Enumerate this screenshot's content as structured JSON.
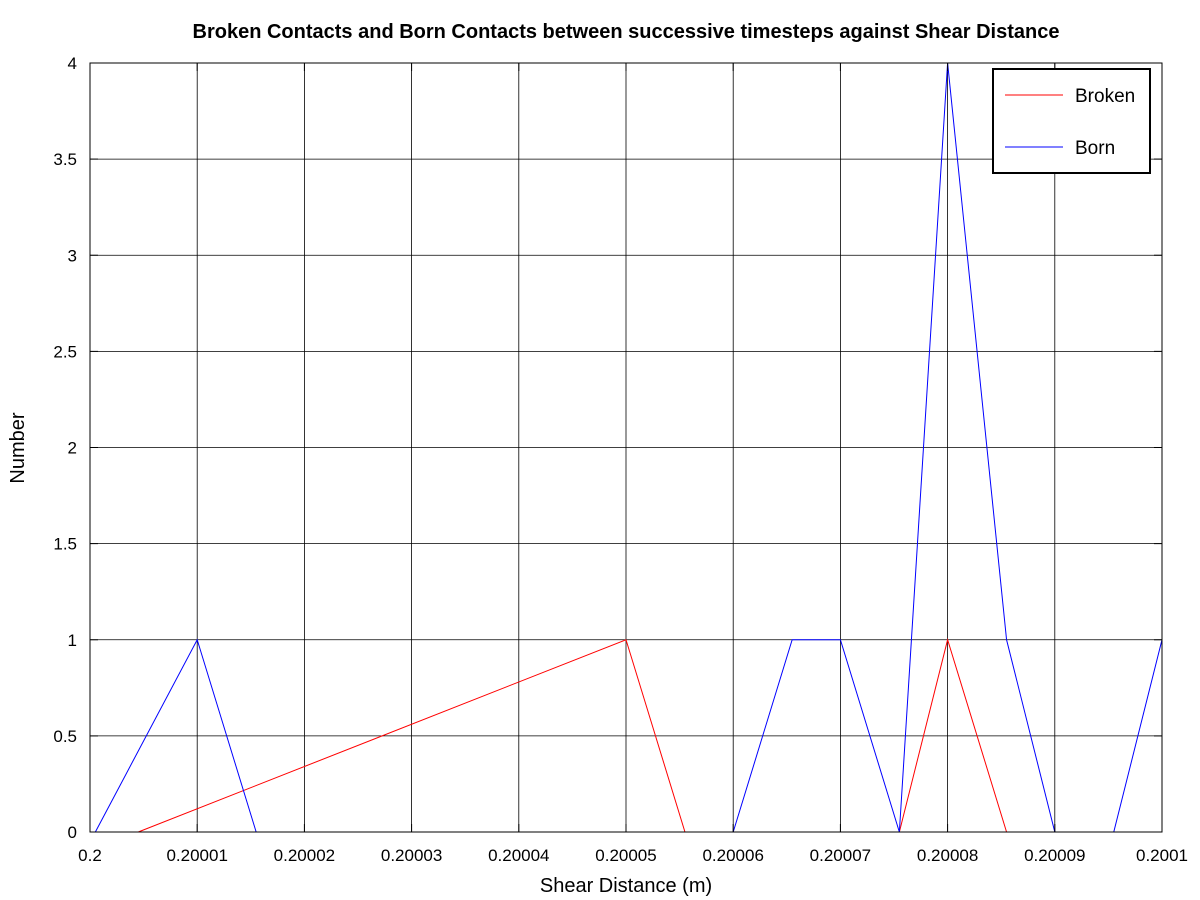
{
  "chart_data": {
    "type": "line",
    "title": "Broken Contacts and Born Contacts between successive timesteps against Shear Distance",
    "xlabel": "Shear Distance (m)",
    "ylabel": "Number",
    "xlim": [
      0.2,
      0.2001
    ],
    "ylim": [
      0,
      4
    ],
    "grid": true,
    "legend_position": "top-right",
    "x_ticks": [
      {
        "value": 0.2,
        "label": "0.2"
      },
      {
        "value": 0.20001,
        "label": "0.20001"
      },
      {
        "value": 0.20002,
        "label": "0.20002"
      },
      {
        "value": 0.20003,
        "label": "0.20003"
      },
      {
        "value": 0.20004,
        "label": "0.20004"
      },
      {
        "value": 0.20005,
        "label": "0.20005"
      },
      {
        "value": 0.20006,
        "label": "0.20006"
      },
      {
        "value": 0.20007,
        "label": "0.20007"
      },
      {
        "value": 0.20008,
        "label": "0.20008"
      },
      {
        "value": 0.20009,
        "label": "0.20009"
      },
      {
        "value": 0.2001,
        "label": "0.2001"
      }
    ],
    "y_ticks": [
      {
        "value": 0,
        "label": "0"
      },
      {
        "value": 0.5,
        "label": "0.5"
      },
      {
        "value": 1,
        "label": "1"
      },
      {
        "value": 1.5,
        "label": "1.5"
      },
      {
        "value": 2,
        "label": "2"
      },
      {
        "value": 2.5,
        "label": "2.5"
      },
      {
        "value": 3,
        "label": "3"
      },
      {
        "value": 3.5,
        "label": "3.5"
      },
      {
        "value": 4,
        "label": "4"
      }
    ],
    "series": [
      {
        "name": "Broken",
        "color": "#ff0000",
        "x": [
          0.2000045,
          0.20005,
          0.2000555,
          0.2000755,
          0.20008,
          0.2000855
        ],
        "y": [
          0,
          1,
          0,
          0,
          1,
          0
        ]
      },
      {
        "name": "Born",
        "color": "#0000ff",
        "x": [
          0.2000005,
          0.20001,
          0.2000155,
          0.20006,
          0.2000655,
          0.20007,
          0.2000755,
          0.20008,
          0.2000855,
          0.20009,
          0.2000955,
          0.2001
        ],
        "y": [
          0,
          1,
          0,
          0,
          1,
          1,
          0,
          4,
          1,
          0,
          0,
          1
        ]
      }
    ]
  }
}
